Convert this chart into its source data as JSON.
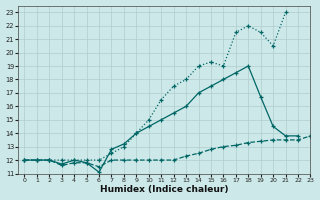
{
  "xlabel": "Humidex (Indice chaleur)",
  "background_color": "#cde8e8",
  "grid_color": "#b0cccc",
  "line_color": "#006666",
  "xlim": [
    -0.5,
    23
  ],
  "ylim": [
    11,
    23.5
  ],
  "xticks": [
    0,
    1,
    2,
    3,
    4,
    5,
    6,
    7,
    8,
    9,
    10,
    11,
    12,
    13,
    14,
    15,
    16,
    17,
    18,
    19,
    20,
    21,
    22,
    23
  ],
  "yticks": [
    11,
    12,
    13,
    14,
    15,
    16,
    17,
    18,
    19,
    20,
    21,
    22,
    23
  ],
  "line_dotted_x": [
    0,
    1,
    2,
    3,
    4,
    5,
    6,
    7,
    8,
    9,
    10,
    11,
    12,
    13,
    14,
    15,
    16,
    17,
    18,
    19,
    20,
    21
  ],
  "line_dotted_y": [
    12,
    12,
    12,
    12,
    12,
    12,
    12,
    12.5,
    13,
    14,
    15,
    16.5,
    17.5,
    18,
    19,
    19.3,
    19,
    21.5,
    22.0,
    21.5,
    20.5,
    23.0
  ],
  "line_solid_x": [
    0,
    1,
    2,
    3,
    4,
    5,
    6,
    7,
    8,
    9,
    10,
    11,
    12,
    13,
    14,
    15,
    16,
    17,
    18,
    19,
    20,
    21,
    22
  ],
  "line_solid_y": [
    12,
    12,
    12,
    11.7,
    12.0,
    11.8,
    11.1,
    12.8,
    13.2,
    14.0,
    14.5,
    15.0,
    15.5,
    16.0,
    17.0,
    17.5,
    18.0,
    18.5,
    19.0,
    16.7,
    14.5,
    13.8,
    13.8
  ],
  "line_dashed_x": [
    0,
    1,
    2,
    3,
    4,
    5,
    6,
    7,
    8,
    9,
    10,
    11,
    12,
    13,
    14,
    15,
    16,
    17,
    18,
    19,
    20,
    21,
    22,
    23
  ],
  "line_dashed_y": [
    12,
    12,
    12,
    11.6,
    11.8,
    11.8,
    11.5,
    12,
    12,
    12,
    12,
    12,
    12,
    12.3,
    12.5,
    12.8,
    13,
    13.1,
    13.3,
    13.4,
    13.5,
    13.5,
    13.5,
    13.8
  ]
}
